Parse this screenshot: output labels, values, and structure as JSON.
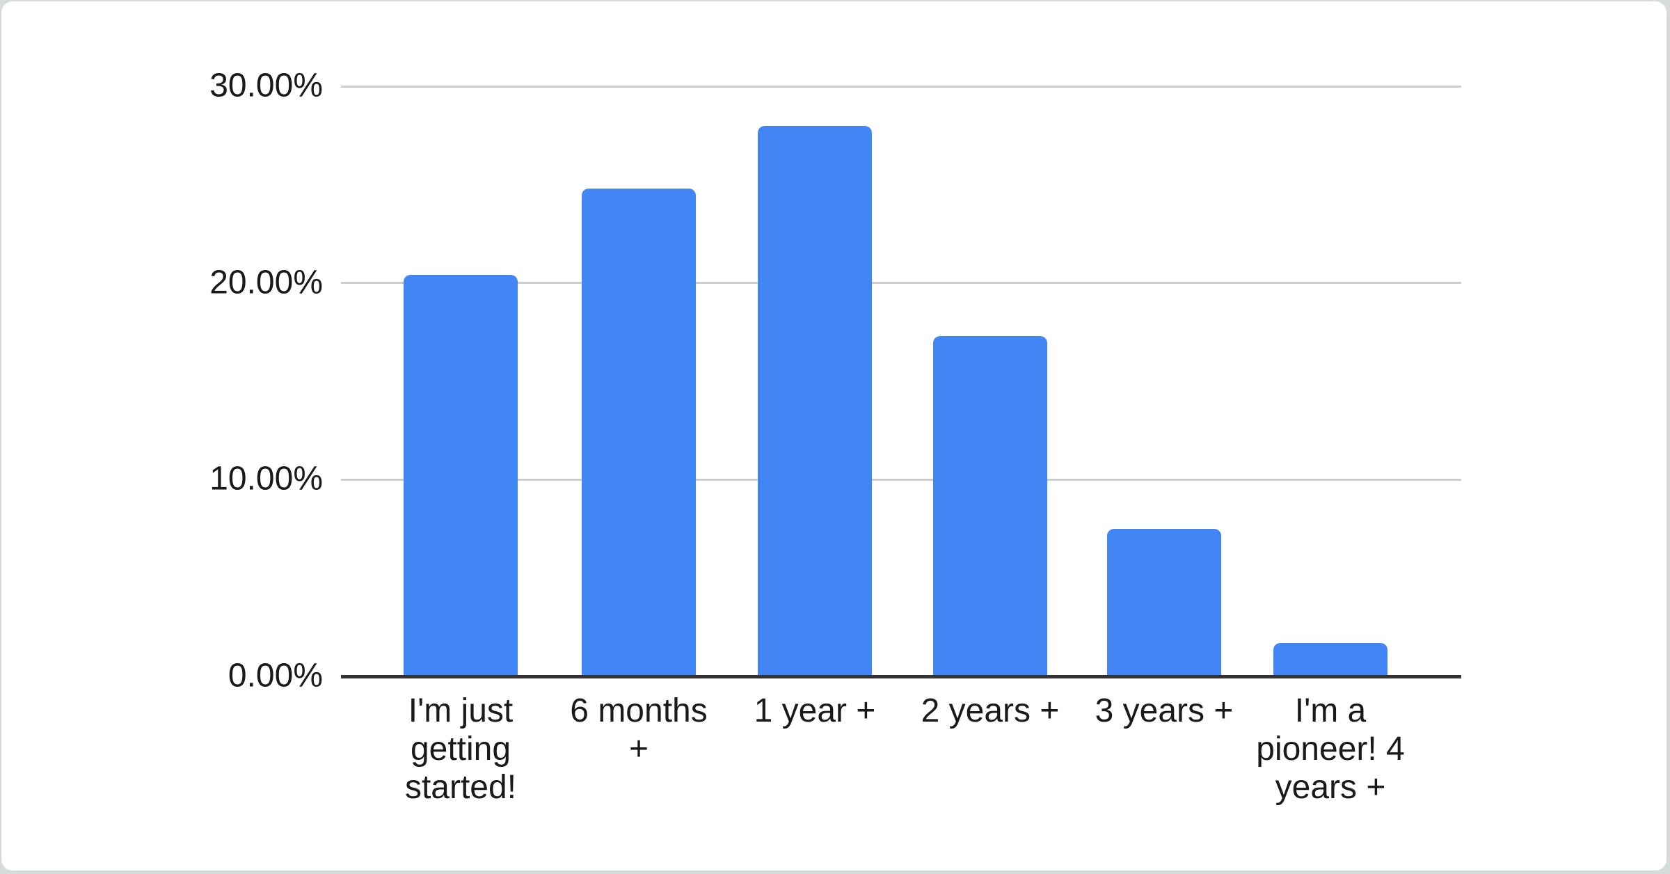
{
  "chart_data": {
    "type": "bar",
    "title": "",
    "xlabel": "",
    "ylabel": "",
    "categories": [
      "I'm just getting started!",
      "6 months +",
      "1 year +",
      "2 years +",
      "3 years +",
      "I'm a pioneer! 4 years +"
    ],
    "values": [
      20.4,
      24.8,
      28.0,
      17.3,
      7.5,
      1.7
    ],
    "yticks": [
      "0.00%",
      "10.00%",
      "20.00%",
      "30.00%"
    ],
    "ytick_values": [
      0,
      10,
      20,
      30
    ],
    "ylim": [
      0,
      30
    ],
    "grid": true,
    "legend": "none",
    "colors": {
      "bar": "#4285f4",
      "gridline": "#cccccc",
      "axis_line": "#333333",
      "label": "#1a1a1a",
      "card_background": "#ffffff",
      "page_background": "#d6dcd9"
    }
  }
}
